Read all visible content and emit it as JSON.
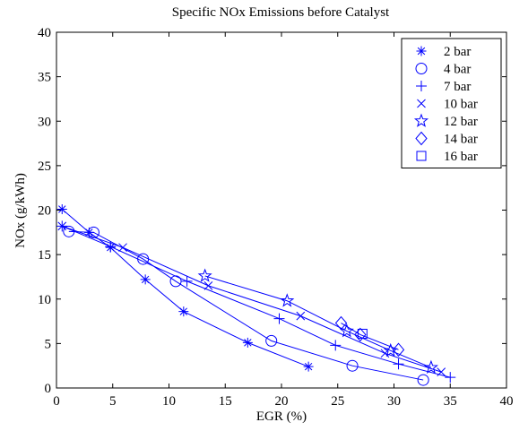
{
  "chart_data": {
    "type": "line",
    "title": "Specific NOx Emissions before Catalyst",
    "xlabel": "EGR (%)",
    "ylabel": "NOx (g/kWh)",
    "xlim": [
      0,
      40
    ],
    "ylim": [
      0,
      40
    ],
    "xticks": [
      0,
      5,
      10,
      15,
      20,
      25,
      30,
      35,
      40
    ],
    "yticks": [
      0,
      5,
      10,
      15,
      20,
      25,
      30,
      35,
      40
    ],
    "grid": false,
    "legend_position": "top-right",
    "color": "#0000ff",
    "series": [
      {
        "name": "2 bar",
        "marker": "asterisk",
        "points": [
          [
            0.5,
            20.1
          ],
          [
            2.9,
            17.5
          ],
          [
            4.8,
            15.8
          ],
          [
            7.9,
            12.2
          ],
          [
            11.3,
            8.6
          ],
          [
            17.0,
            5.1
          ],
          [
            22.4,
            2.4
          ]
        ]
      },
      {
        "name": "4 bar",
        "marker": "circle",
        "points": [
          [
            1.1,
            17.6
          ],
          [
            3.3,
            17.5
          ],
          [
            7.7,
            14.5
          ],
          [
            10.6,
            12.0
          ],
          [
            19.1,
            5.3
          ],
          [
            26.3,
            2.5
          ],
          [
            32.6,
            0.9
          ]
        ]
      },
      {
        "name": "7 bar",
        "marker": "plus",
        "points": [
          [
            0.5,
            18.2
          ],
          [
            4.8,
            15.9
          ],
          [
            11.6,
            12.0
          ],
          [
            19.8,
            7.8
          ],
          [
            24.8,
            4.8
          ],
          [
            30.4,
            2.7
          ],
          [
            35.0,
            1.2
          ]
        ]
      },
      {
        "name": "10 bar",
        "marker": "x",
        "points": [
          [
            0.5,
            18.2
          ],
          [
            5.9,
            15.8
          ],
          [
            13.5,
            11.5
          ],
          [
            21.7,
            8.1
          ],
          [
            29.2,
            3.9
          ],
          [
            34.2,
            1.8
          ]
        ]
      },
      {
        "name": "12 bar",
        "marker": "star",
        "points": [
          [
            13.2,
            12.6
          ],
          [
            20.5,
            9.8
          ],
          [
            25.8,
            6.4
          ],
          [
            29.7,
            4.2
          ],
          [
            33.3,
            2.3
          ]
        ]
      },
      {
        "name": "14 bar",
        "marker": "diamond",
        "points": [
          [
            25.3,
            7.3
          ],
          [
            27.0,
            6.0
          ],
          [
            30.4,
            4.3
          ]
        ]
      },
      {
        "name": "16 bar",
        "marker": "square",
        "points": [
          [
            27.2,
            6.1
          ]
        ]
      }
    ]
  }
}
